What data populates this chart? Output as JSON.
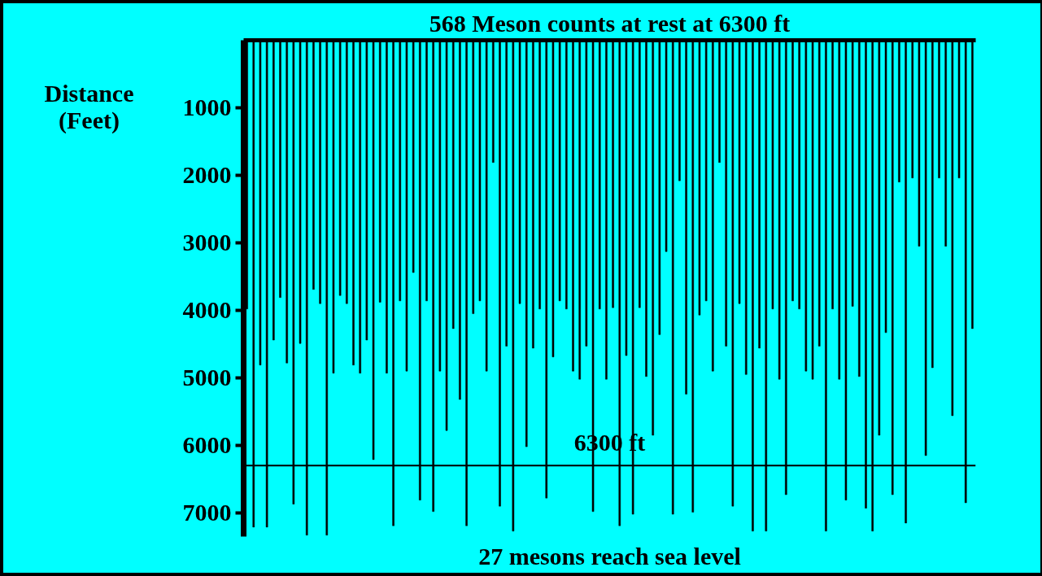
{
  "chart_data": {
    "type": "bar",
    "title": "568 Meson counts at rest at 6300 ft",
    "ylabel": "Distance (Feet)",
    "annotations": [
      "27 mesons reach sea level"
    ],
    "categories": [
      null,
      null,
      null,
      null,
      null,
      null,
      null,
      null,
      null,
      null,
      null,
      null,
      null,
      null,
      null,
      null,
      null,
      null,
      null,
      null,
      null,
      null,
      null,
      null,
      null,
      null,
      null,
      null,
      null,
      null,
      null,
      null,
      null,
      null,
      null,
      null,
      null,
      null,
      null,
      null,
      null,
      null,
      null,
      null,
      null,
      null,
      null,
      null,
      null,
      null,
      null,
      null,
      null,
      null,
      null,
      null,
      null,
      null,
      null,
      null,
      null,
      null,
      null,
      null,
      null,
      null,
      null,
      null,
      null,
      null,
      null,
      null,
      null,
      null,
      null,
      null,
      null,
      null,
      null,
      null,
      null,
      null,
      null,
      null,
      null,
      null,
      null,
      null,
      null,
      null,
      null,
      null,
      null,
      null,
      null,
      null,
      null,
      null,
      null,
      null,
      null,
      null,
      null,
      null,
      null,
      null,
      null,
      null,
      null,
      null
    ],
    "values": [
      3980,
      7210,
      4810,
      7210,
      4440,
      3810,
      4780,
      6870,
      4490,
      7330,
      3690,
      3900,
      7330,
      4930,
      3780,
      3900,
      4810,
      4930,
      4440,
      6210,
      3880,
      4930,
      7190,
      3860,
      4900,
      3440,
      6810,
      3860,
      6980,
      4900,
      5780,
      4270,
      5320,
      7190,
      4050,
      3860,
      4900,
      1810,
      6900,
      4530,
      7270,
      3900,
      6020,
      4560,
      3980,
      6780,
      4690,
      3860,
      3980,
      4900,
      5020,
      4530,
      6980,
      3980,
      5020,
      3960,
      7190,
      4670,
      7020,
      3960,
      4980,
      5850,
      4360,
      3130,
      7020,
      2080,
      5240,
      6990,
      4070,
      3860,
      4900,
      1810,
      4530,
      6900,
      3900,
      4950,
      7270,
      4560,
      7270,
      3980,
      5020,
      6730,
      3860,
      3980,
      4900,
      5020,
      4530,
      7270,
      3980,
      5020,
      6810,
      3940,
      4980,
      6930,
      7270,
      5850,
      4330,
      6730,
      2100,
      7150,
      2040,
      3050,
      6150,
      4850,
      2040,
      3050,
      5560,
      2040,
      6850,
      4270
    ],
    "color": "#000000",
    "ylim": [
      7350,
      0
    ],
    "yticks": [
      1000,
      2000,
      3000,
      4000,
      5000,
      6000,
      7000
    ],
    "ref_lines": [
      {
        "axis": "y",
        "value": 6300,
        "label": "6300 ft",
        "color": "#000000"
      }
    ],
    "grid": false,
    "tick_labels": "y"
  }
}
